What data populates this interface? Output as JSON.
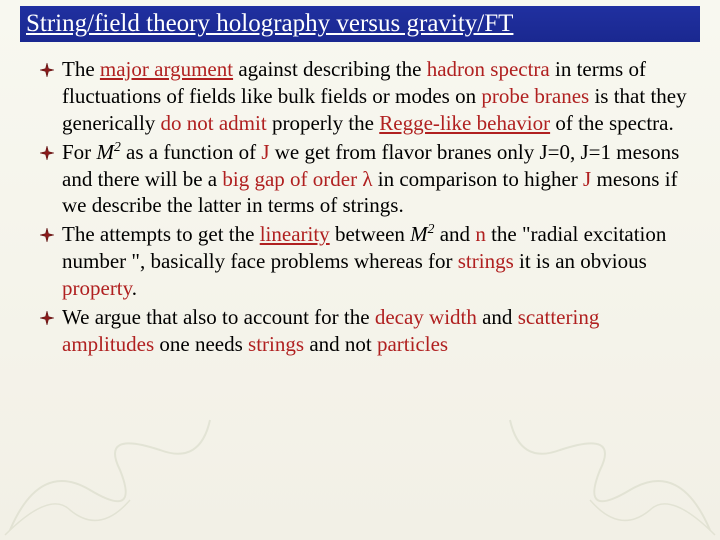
{
  "slide": {
    "background_gradient": [
      "#f8f8f0",
      "#f2f0e6"
    ],
    "title_bar": {
      "bg_gradient": [
        "#2030a0",
        "#1a2890"
      ],
      "text": "String/field theory holography versus gravity/FT",
      "text_color": "#ffffff",
      "underline": true,
      "fontsize": 25
    },
    "body_fontsize": 21,
    "body_lineheight": 1.28,
    "text_color": "#000000",
    "highlight_color": "#b02020",
    "bullet": {
      "shape": "4-point-star",
      "fill": "#8b1a1a",
      "stroke": "#5a0f0f",
      "size": 14
    },
    "bullets": [
      {
        "segments": [
          {
            "t": "The "
          },
          {
            "t": "major  argument",
            "red": true,
            "u": true
          },
          {
            "t": " against describing the "
          },
          {
            "t": "hadron spectra",
            "red": true
          },
          {
            "t": " in terms of fluctuations of fields like bulk fields or modes on "
          },
          {
            "t": "probe branes",
            "red": true
          },
          {
            "t": " is that they generically "
          },
          {
            "t": "do not admit",
            "red": true
          },
          {
            "t": " properly the "
          },
          {
            "t": "Regge-like  behavior",
            "red": true,
            "u": true
          },
          {
            "t": " of the spectra."
          }
        ]
      },
      {
        "segments": [
          {
            "t": "For "
          },
          {
            "formula": "M2"
          },
          {
            "t": "  as a function of "
          },
          {
            "t": "J",
            "red": true
          },
          {
            "t": "  we get from  flavor branes only J=0, J=1  mesons and there will be a "
          },
          {
            "t": "big  gap of order λ",
            "red": true
          },
          {
            "t": "  in comparison to higher "
          },
          {
            "t": "J",
            "red": true
          },
          {
            "t": "  mesons if we describe the latter in terms of strings."
          }
        ]
      },
      {
        "segments": [
          {
            "t": "The attempts to get the "
          },
          {
            "t": "linearity",
            "red": true,
            "u": true
          },
          {
            "t": " between "
          },
          {
            "formula": "M2"
          },
          {
            "t": "  and "
          },
          {
            "t": "n",
            "red": true
          },
          {
            "t": "  the \"radial excitation number \", basically face problems whereas for "
          },
          {
            "t": "strings",
            "red": true
          },
          {
            "t": " it is an obvious "
          },
          {
            "t": "property",
            "red": true
          },
          {
            "t": "."
          }
        ]
      },
      {
        "segments": [
          {
            "t": "We argue  that also to account for the "
          },
          {
            "t": "decay width",
            "red": true
          },
          {
            "t": "  and "
          },
          {
            "t": "scattering amplitudes",
            "red": true
          },
          {
            "t": " one needs "
          },
          {
            "t": "strings",
            "red": true
          },
          {
            "t": " and not "
          },
          {
            "t": "particles",
            "red": true
          }
        ]
      }
    ],
    "deco_color": "#7a8a5a"
  }
}
